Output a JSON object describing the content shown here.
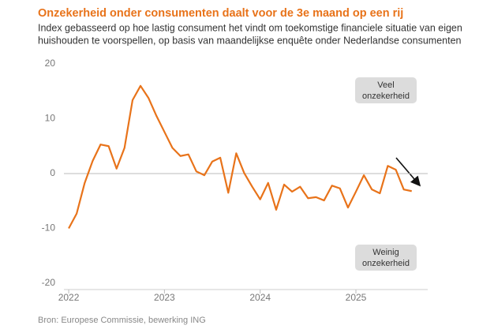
{
  "chart_data": {
    "type": "line",
    "title": "Onzekerheid onder consumenten daalt voor de 3e maand op een rij",
    "subtitle": [
      "Index gebasseerd op hoe lastig consument het vindt om toekomstige financiele situatie van eigen",
      "huishouden te voorspellen,  op basis van maandelijkse enquête onder Nederlandse consumenten"
    ],
    "x": [
      2022,
      2022.083,
      2022.167,
      2022.25,
      2022.333,
      2022.417,
      2022.5,
      2022.583,
      2022.667,
      2022.75,
      2022.833,
      2022.917,
      2023,
      2023.083,
      2023.167,
      2023.25,
      2023.333,
      2023.417,
      2023.5,
      2023.583,
      2023.667,
      2023.75,
      2023.833,
      2023.917,
      2024,
      2024.083,
      2024.167,
      2024.25,
      2024.333,
      2024.417,
      2024.5,
      2024.583,
      2024.667,
      2024.75,
      2024.833,
      2024.917,
      2025,
      2025.083,
      2025.167,
      2025.25,
      2025.333,
      2025.417,
      2025.5,
      2025.583
    ],
    "series": [
      {
        "color": "#e8731a",
        "values": [
          -10,
          -7.3,
          -1.7,
          2.3,
          5.3,
          5.0,
          0.9,
          4.7,
          13.4,
          16.0,
          13.8,
          10.5,
          7.6,
          4.7,
          3.2,
          3.5,
          0.4,
          -0.3,
          2.2,
          2.9,
          -3.5,
          3.7,
          0.1,
          -2.4,
          -4.7,
          -1.7,
          -6.6,
          -2.0,
          -3.3,
          -2.4,
          -4.5,
          -4.3,
          -4.9,
          -2.2,
          -2.7,
          -6.2,
          -3.3,
          -0.3,
          -2.9,
          -3.6,
          1.4,
          0.7,
          -2.9,
          -3.2
        ]
      }
    ],
    "xlim": [
      2021.95,
      2025.75
    ],
    "xticks": [
      2022,
      2023,
      2024,
      2025
    ],
    "ylim": [
      -20,
      20
    ],
    "yticks": [
      -20,
      -10,
      0,
      10,
      20
    ],
    "annotations": [
      [
        "Veel",
        "onzekerheid"
      ],
      [
        "Weinig",
        "onzekerheid"
      ]
    ],
    "source": "Bron: Europese Commissie, bewerking ING"
  }
}
